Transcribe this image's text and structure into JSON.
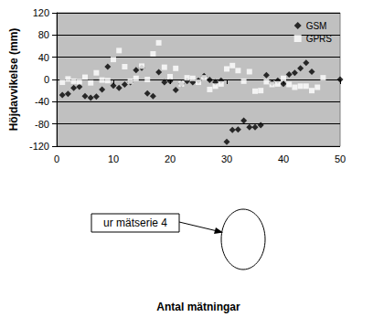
{
  "chart_data": {
    "type": "scatter",
    "x_label": "Antal mätningar",
    "y_label": "Höjdavvikelse (mm)",
    "annotations": [
      "ur mätserie 4"
    ],
    "xlim": [
      0,
      50
    ],
    "xticks": [
      0,
      10,
      20,
      30,
      40,
      50
    ],
    "ylim": [
      -120,
      120
    ],
    "yticks": [
      -120,
      -80,
      -40,
      0,
      40,
      80,
      120
    ],
    "grid": true,
    "legend": "top-right",
    "series": [
      {
        "name": "GSM",
        "color": "#000000",
        "marker": "diamond",
        "x": [
          1,
          2,
          3,
          4,
          5,
          6,
          7,
          8,
          9,
          10,
          11,
          12,
          13,
          14,
          15,
          16,
          17,
          18,
          19,
          20,
          21,
          22,
          23,
          24,
          25,
          26,
          27,
          28,
          29,
          30,
          31,
          32,
          33,
          34,
          35,
          36,
          37,
          38,
          39,
          40,
          41,
          42,
          43,
          44,
          45,
          50
        ],
        "values": [
          -28,
          -26,
          -15,
          -13,
          -30,
          -33,
          -31,
          -18,
          23,
          -11,
          -15,
          -9,
          -5,
          17,
          21,
          -25,
          -30,
          13,
          -5,
          -3,
          -19,
          -8,
          -3,
          -5,
          -2,
          6,
          -1,
          -5,
          -2,
          -112,
          -91,
          -90,
          -74,
          -86,
          -86,
          -82,
          8,
          -6,
          -2,
          -8,
          9,
          12,
          20,
          30,
          14,
          0
        ]
      },
      {
        "name": "GPRS",
        "color": "#ffffff",
        "marker": "square",
        "x": [
          1,
          2,
          3,
          4,
          5,
          6,
          7,
          8,
          9,
          10,
          11,
          12,
          13,
          14,
          15,
          16,
          17,
          18,
          19,
          20,
          21,
          22,
          23,
          24,
          25,
          26,
          27,
          28,
          29,
          30,
          31,
          32,
          33,
          34,
          35,
          36,
          37,
          38,
          39,
          40,
          41,
          42,
          43,
          44,
          45,
          46,
          47
        ],
        "values": [
          -5,
          1,
          -3,
          -4,
          4,
          -6,
          12,
          -1,
          -2,
          36,
          52,
          23,
          -3,
          2,
          24,
          0,
          46,
          66,
          22,
          5,
          20,
          -8,
          3,
          2,
          -5,
          3,
          -18,
          -12,
          -8,
          19,
          25,
          16,
          -3,
          14,
          -21,
          -20,
          -4,
          -9,
          -8,
          2,
          -9,
          -14,
          -12,
          -12,
          -20,
          -14,
          3
        ]
      }
    ]
  }
}
